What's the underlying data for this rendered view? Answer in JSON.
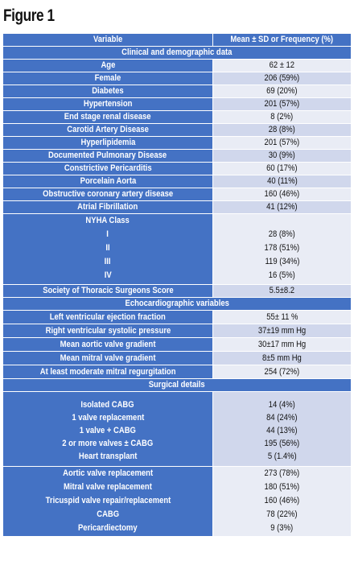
{
  "figure_title": "Figure 1",
  "table": {
    "headers": [
      "Variable",
      "Mean ± SD or Frequency (%)"
    ],
    "rows": [
      {
        "type": "section",
        "label": "Clinical and demographic data",
        "h": 15
      },
      {
        "type": "data",
        "label": "Age",
        "value": "62 ± 12",
        "h": 15
      },
      {
        "type": "data",
        "label": "Female",
        "value": "206 (59%)",
        "h": 15,
        "alt": true
      },
      {
        "type": "data",
        "label": "Diabetes",
        "value": "69 (20%)",
        "h": 15
      },
      {
        "type": "data",
        "label": "Hypertension",
        "value": "201 (57%)",
        "h": 15,
        "alt": true
      },
      {
        "type": "data",
        "label": "End stage renal disease",
        "value": "8 (2%)",
        "h": 15
      },
      {
        "type": "data",
        "label": "Carotid Artery Disease",
        "value": "28 (8%)",
        "h": 15,
        "alt": true
      },
      {
        "type": "data",
        "label": "Hyperlipidemia",
        "value": "201 (57%)",
        "h": 15
      },
      {
        "type": "data",
        "label": "Documented Pulmonary Disease",
        "value": "30 (9%)",
        "h": 15,
        "alt": true
      },
      {
        "type": "data",
        "label": "Constrictive Pericarditis",
        "value": "60 (17%)",
        "h": 15
      },
      {
        "type": "data",
        "label": "Porcelain Aorta",
        "value": "40 (11%)",
        "h": 15,
        "alt": true
      },
      {
        "type": "data",
        "label": "Obstructive coronary artery disease",
        "value": "160 (46%)",
        "h": 15
      },
      {
        "type": "data",
        "label": "Atrial Fibrillation",
        "value": "41 (12%)",
        "h": 15,
        "alt": true
      },
      {
        "type": "multi",
        "labels": [
          "NYHA Class",
          "I",
          "II",
          "III",
          "IV"
        ],
        "values": [
          "",
          "28 (8%)",
          "178 (51%)",
          "119 (34%)",
          "16 (5%)"
        ],
        "h": 87
      },
      {
        "type": "data",
        "label": "Society of Thoracic Surgeons Score",
        "value": "5.5±8.2",
        "h": 15,
        "alt": true
      },
      {
        "type": "section",
        "label": "Echocardiographic variables",
        "h": 15
      },
      {
        "type": "data",
        "label": "Left ventricular ejection fraction",
        "value": "55± 11 %",
        "h": 16
      },
      {
        "type": "data",
        "label": "Right ventricular systolic pressure",
        "value": "37±19 mm Hg",
        "h": 16,
        "alt": true
      },
      {
        "type": "data",
        "label": "Mean aortic valve gradient",
        "value": "30±17 mm Hg",
        "h": 16
      },
      {
        "type": "data",
        "label": "Mean mitral valve gradient",
        "value": "8±5 mm Hg",
        "h": 16,
        "alt": true
      },
      {
        "type": "data",
        "label": "At least moderate mitral regurgitation",
        "value": "254 (72%)",
        "h": 16
      },
      {
        "type": "section",
        "label": "Surgical details",
        "h": 15
      },
      {
        "type": "multi",
        "labels": [
          "Isolated  CABG",
          "1 valve replacement",
          "1 valve + CABG",
          "2 or more valves ± CABG",
          "Heart transplant"
        ],
        "values": [
          "14 (4%)",
          "84 (24%)",
          "44 (13%)",
          "195 (56%)",
          "5 (1.4%)"
        ],
        "h": 92,
        "alt": true,
        "pad": 8
      },
      {
        "type": "multi",
        "labels": [
          "Aortic valve replacement",
          "Mitral valve replacement",
          "Tricuspid valve repair/replacement",
          "CABG",
          "Pericardiectomy"
        ],
        "values": [
          "273 (78%)",
          "180 (51%)",
          "160 (46%)",
          "78 (22%)",
          "9 (3%)"
        ],
        "h": 86,
        "pad": 0
      }
    ]
  }
}
